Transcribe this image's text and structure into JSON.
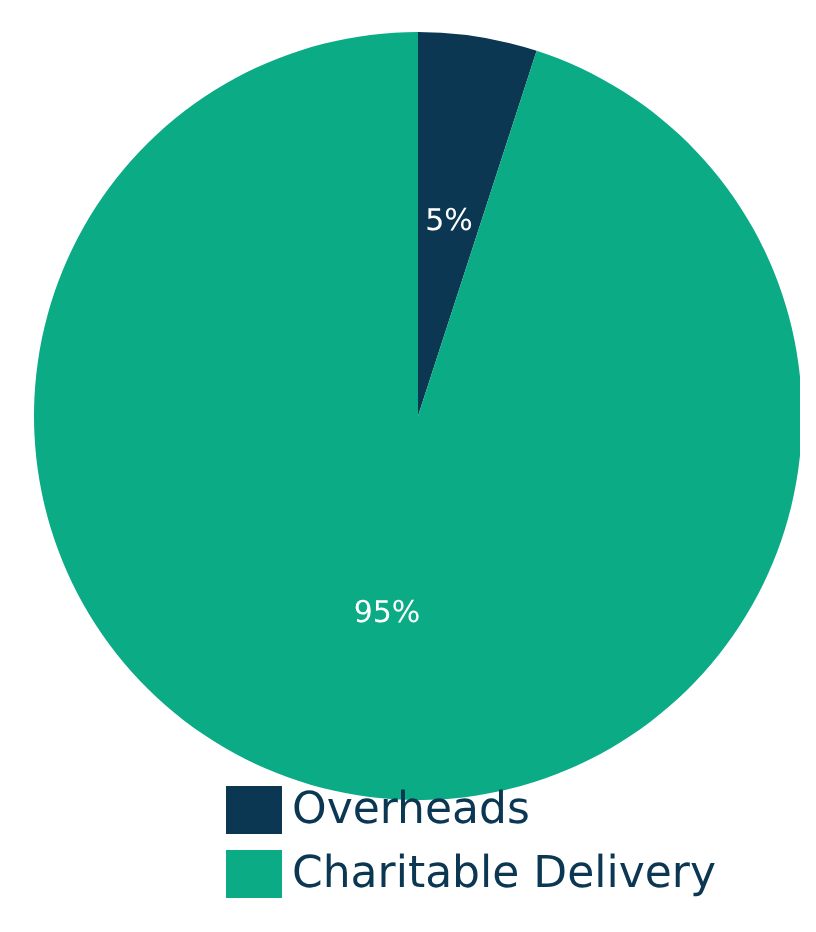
{
  "chart_data": {
    "type": "pie",
    "categories": [
      "Overheads",
      "Charitable Delivery"
    ],
    "values": [
      5,
      95
    ],
    "colors": [
      "#0c3752",
      "#0aab85"
    ],
    "value_labels": [
      "5%",
      "95%"
    ],
    "legend": "bottom"
  }
}
